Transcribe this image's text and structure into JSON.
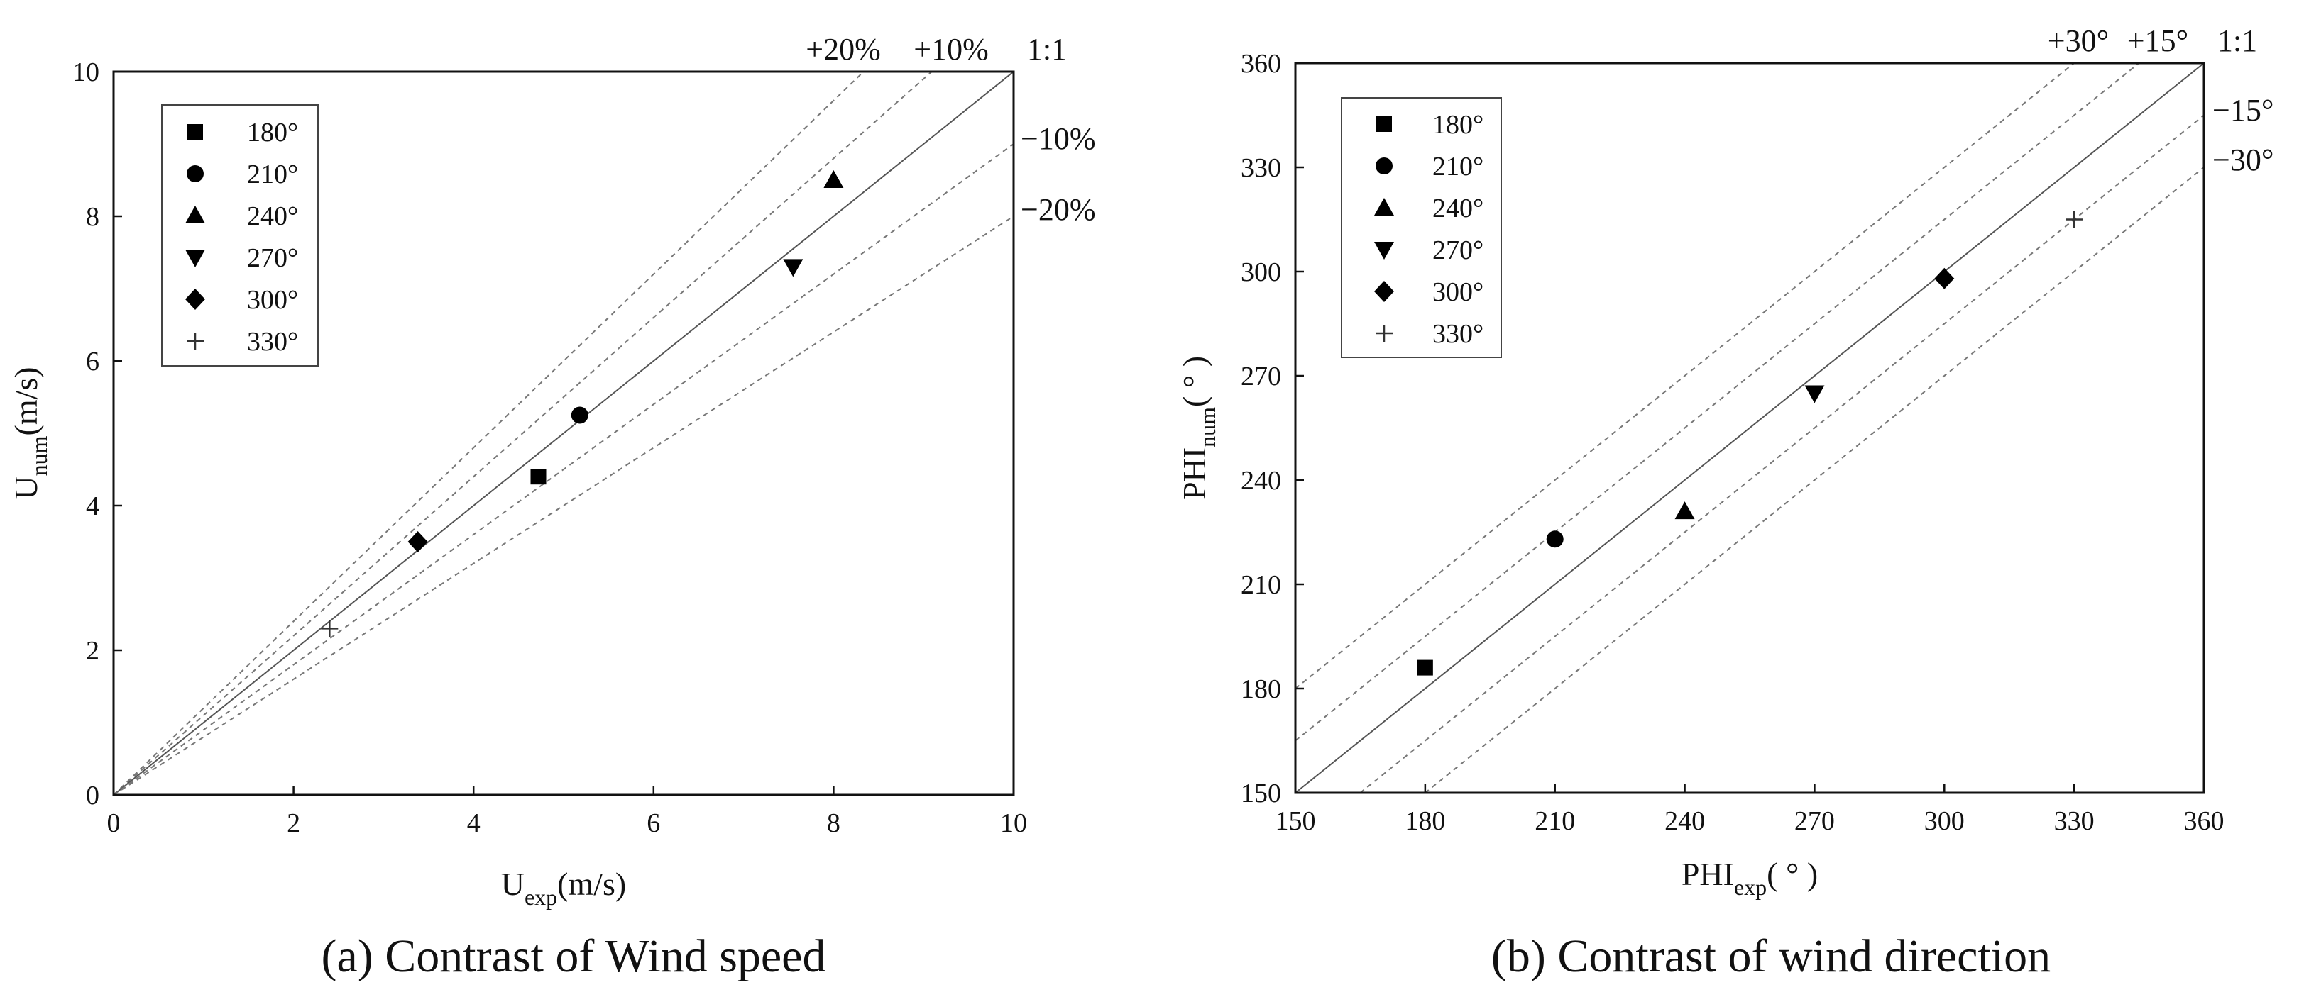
{
  "chart_data": [
    {
      "type": "scatter",
      "panel": "a",
      "caption": "(a) Contrast of Wind speed",
      "xlabel": {
        "main": "U",
        "sub": "exp",
        "rest": "(m/s)"
      },
      "ylabel": {
        "main": "U",
        "sub": "num",
        "rest": "(m/s)"
      },
      "xlim": [
        0,
        10
      ],
      "ylim": [
        0,
        10
      ],
      "xticks": [
        0,
        2,
        4,
        6,
        8,
        10
      ],
      "yticks": [
        0,
        2,
        4,
        6,
        8,
        10
      ],
      "grid": false,
      "legend_position": "top-left",
      "series": [
        {
          "name": "180°",
          "marker": "square",
          "x": 4.72,
          "y": 4.4
        },
        {
          "name": "210°",
          "marker": "circle",
          "x": 5.18,
          "y": 5.25
        },
        {
          "name": "240°",
          "marker": "triangle-up",
          "x": 8.0,
          "y": 8.5
        },
        {
          "name": "270°",
          "marker": "triangle-down",
          "x": 7.55,
          "y": 7.3
        },
        {
          "name": "300°",
          "marker": "diamond",
          "x": 3.38,
          "y": 3.5
        },
        {
          "name": "330°",
          "marker": "plus",
          "x": 2.4,
          "y": 2.3
        }
      ],
      "reference_lines": [
        {
          "label": "+20%",
          "kind": "ratio",
          "value": 1.2,
          "style": "dashed"
        },
        {
          "label": "+10%",
          "kind": "ratio",
          "value": 1.1,
          "style": "dashed"
        },
        {
          "label": "1:1",
          "kind": "ratio",
          "value": 1.0,
          "style": "solid"
        },
        {
          "label": "−10%",
          "kind": "ratio",
          "value": 0.9,
          "style": "dashed"
        },
        {
          "label": "−20%",
          "kind": "ratio",
          "value": 0.8,
          "style": "dashed"
        }
      ]
    },
    {
      "type": "scatter",
      "panel": "b",
      "caption": "(b) Contrast of wind direction",
      "xlabel": {
        "main": "PHI",
        "sub": "exp",
        "rest": "( ° )"
      },
      "ylabel": {
        "main": "PHI",
        "sub": "num",
        "rest": "( ° )"
      },
      "xlim": [
        150,
        360
      ],
      "ylim": [
        150,
        360
      ],
      "xticks": [
        150,
        180,
        210,
        240,
        270,
        300,
        330,
        360
      ],
      "yticks": [
        150,
        180,
        210,
        240,
        270,
        300,
        330,
        360
      ],
      "grid": false,
      "legend_position": "top-left",
      "series": [
        {
          "name": "180°",
          "marker": "square",
          "x": 180,
          "y": 186
        },
        {
          "name": "210°",
          "marker": "circle",
          "x": 210,
          "y": 223
        },
        {
          "name": "240°",
          "marker": "triangle-up",
          "x": 240,
          "y": 231
        },
        {
          "name": "270°",
          "marker": "triangle-down",
          "x": 270,
          "y": 265
        },
        {
          "name": "300°",
          "marker": "diamond",
          "x": 300,
          "y": 298
        },
        {
          "name": "330°",
          "marker": "plus",
          "x": 330,
          "y": 315
        }
      ],
      "reference_lines": [
        {
          "label": "+30°",
          "kind": "offset",
          "value": 30,
          "style": "dashed"
        },
        {
          "label": "+15°",
          "kind": "offset",
          "value": 15,
          "style": "dashed"
        },
        {
          "label": "1:1",
          "kind": "offset",
          "value": 0,
          "style": "solid"
        },
        {
          "label": "−15°",
          "kind": "offset",
          "value": -15,
          "style": "dashed"
        },
        {
          "label": "−30°",
          "kind": "offset",
          "value": -30,
          "style": "dashed"
        }
      ]
    }
  ]
}
